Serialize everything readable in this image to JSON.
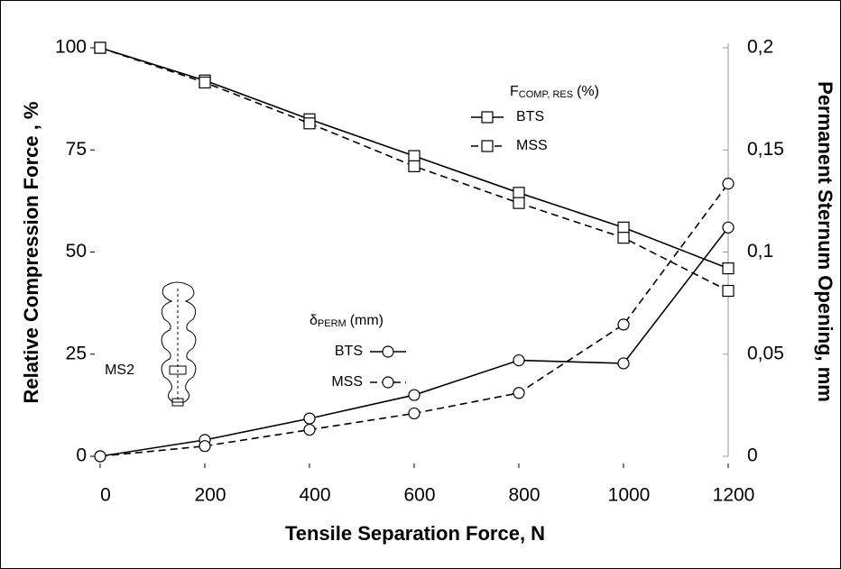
{
  "chart_data": {
    "type": "line",
    "xlabel": "Tensile Separation Force, N",
    "ylabel": "Relative Compression Force , %",
    "y2label": "Permanent Sternum Opening, mm",
    "x": [
      0,
      200,
      400,
      600,
      800,
      1000,
      1200
    ],
    "xlim": [
      0,
      1200
    ],
    "xticks": [
      0,
      200,
      400,
      600,
      800,
      1000,
      1200
    ],
    "ylim": [
      0,
      100
    ],
    "yticks": [
      0,
      25,
      50,
      75,
      100
    ],
    "y2lim": [
      0,
      0.2
    ],
    "y2ticks": [
      {
        "value": 0,
        "label": "0"
      },
      {
        "value": 0.05,
        "label": "0,05"
      },
      {
        "value": 0.1,
        "label": "0,1"
      },
      {
        "value": 0.15,
        "label": "0,15"
      },
      {
        "value": 0.2,
        "label": "0,2"
      }
    ],
    "legend_groups": [
      {
        "title": "F",
        "title_sub": "COMP, RES",
        "title_unit": "(%)"
      },
      {
        "title": "δ",
        "title_sub": "PERM",
        "title_unit": "(mm)"
      }
    ],
    "series": [
      {
        "name": "BTS",
        "color": "#000000",
        "marker": "square",
        "dashed": false,
        "group": 0,
        "values": [
          100,
          92,
          82.5,
          73.5,
          64.5,
          56,
          46
        ]
      },
      {
        "name": "MSS",
        "color": "#000000",
        "marker": "square",
        "dashed": true,
        "group": 0,
        "values": [
          100,
          91.5,
          81.5,
          71,
          62,
          53.5,
          40.5
        ]
      },
      {
        "name": "BTS",
        "color": "#000000",
        "marker": "circle",
        "dashed": false,
        "group": 1,
        "axis": "y2",
        "values": [
          0,
          0.008,
          0.0185,
          0.03,
          0.047,
          0.0455,
          0.112
        ]
      },
      {
        "name": "MSS",
        "color": "#000000",
        "marker": "circle",
        "dashed": true,
        "group": 1,
        "axis": "y2",
        "values": [
          0,
          0.005,
          0.013,
          0.021,
          0.031,
          0.0645,
          0.1335
        ]
      }
    ],
    "inset_label": "MS2"
  }
}
